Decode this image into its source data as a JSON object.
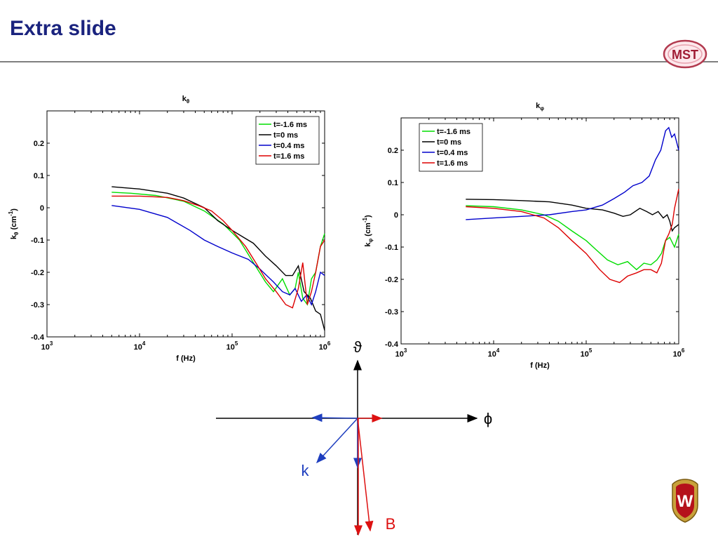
{
  "slide": {
    "title": "Extra slide",
    "logo_text": "MST",
    "crest_letter": "W"
  },
  "colors": {
    "title": "#1a237e",
    "green": "#00dd00",
    "black": "#000000",
    "blue": "#0000cc",
    "red": "#dd0000",
    "axis_vec": "#000000",
    "diagram_k": "#1f3fbf",
    "diagram_B": "#dd1111"
  },
  "chart_data": [
    {
      "type": "line",
      "title": "k_θ",
      "title_main": "k",
      "title_sub": "θ",
      "xlabel": "f (Hz)",
      "ylabel_main": "k",
      "ylabel_sub": "θ",
      "ylabel_unit_pre": " (cm",
      "ylabel_unit_sup": "-1",
      "ylabel_unit_post": ")",
      "xscale": "log",
      "xlim": [
        1000,
        1000000
      ],
      "ylim": [
        -0.4,
        0.3
      ],
      "xticks": [
        {
          "value": 1000,
          "base": "10",
          "exp": "3"
        },
        {
          "value": 10000,
          "base": "10",
          "exp": "4"
        },
        {
          "value": 100000,
          "base": "10",
          "exp": "5"
        },
        {
          "value": 1000000,
          "base": "10",
          "exp": "6"
        }
      ],
      "yticks": [
        {
          "value": 0.2,
          "label": "0.2"
        },
        {
          "value": 0.1,
          "label": "0.1"
        },
        {
          "value": 0,
          "label": "0"
        },
        {
          "value": -0.1,
          "label": "-0.1"
        },
        {
          "value": -0.2,
          "label": "-0.2"
        },
        {
          "value": -0.3,
          "label": "-0.3"
        },
        {
          "value": -0.4,
          "label": "-0.4"
        }
      ],
      "legend_position": "top-right",
      "series": [
        {
          "name": "t=-1.6 ms",
          "color": "#00dd00",
          "x": [
            5000,
            8000,
            15000,
            30000,
            50000,
            80000,
            120000,
            170000,
            230000,
            280000,
            350000,
            420000,
            480000,
            520000,
            580000,
            650000,
            720000,
            800000,
            900000,
            1000000
          ],
          "y": [
            0.048,
            0.045,
            0.038,
            0.02,
            -0.01,
            -0.05,
            -0.1,
            -0.17,
            -0.23,
            -0.26,
            -0.22,
            -0.27,
            -0.25,
            -0.2,
            -0.28,
            -0.3,
            -0.22,
            -0.2,
            -0.12,
            -0.08
          ]
        },
        {
          "name": "t=0 ms",
          "color": "#000000",
          "x": [
            5000,
            10000,
            20000,
            30000,
            50000,
            70000,
            100000,
            130000,
            170000,
            230000,
            300000,
            380000,
            450000,
            520000,
            600000,
            700000,
            800000,
            900000,
            1000000
          ],
          "y": [
            0.065,
            0.058,
            0.045,
            0.03,
            0.0,
            -0.04,
            -0.07,
            -0.09,
            -0.11,
            -0.15,
            -0.18,
            -0.21,
            -0.21,
            -0.18,
            -0.26,
            -0.28,
            -0.32,
            -0.33,
            -0.38
          ]
        },
        {
          "name": "t=0.4 ms",
          "color": "#0000cc",
          "x": [
            5000,
            10000,
            20000,
            35000,
            50000,
            70000,
            100000,
            150000,
            200000,
            280000,
            350000,
            420000,
            480000,
            560000,
            640000,
            720000,
            800000,
            900000,
            1000000
          ],
          "y": [
            0.007,
            -0.005,
            -0.03,
            -0.07,
            -0.1,
            -0.12,
            -0.14,
            -0.16,
            -0.19,
            -0.23,
            -0.26,
            -0.27,
            -0.25,
            -0.29,
            -0.27,
            -0.3,
            -0.26,
            -0.2,
            -0.21
          ]
        },
        {
          "name": "t=1.6 ms",
          "color": "#dd0000",
          "x": [
            5000,
            10000,
            20000,
            30000,
            45000,
            60000,
            80000,
            100000,
            140000,
            180000,
            230000,
            300000,
            380000,
            450000,
            520000,
            580000,
            650000,
            720000,
            800000,
            900000,
            1000000
          ],
          "y": [
            0.036,
            0.036,
            0.032,
            0.022,
            0.005,
            -0.01,
            -0.04,
            -0.07,
            -0.12,
            -0.17,
            -0.22,
            -0.26,
            -0.3,
            -0.31,
            -0.25,
            -0.17,
            -0.3,
            -0.26,
            -0.2,
            -0.12,
            -0.1
          ]
        }
      ]
    },
    {
      "type": "line",
      "title": "k_φ",
      "title_main": "k",
      "title_sub": "φ",
      "xlabel": "f (Hz)",
      "ylabel_main": "k",
      "ylabel_sub": "φ",
      "ylabel_unit_pre": " (cm",
      "ylabel_unit_sup": "-1",
      "ylabel_unit_post": ")",
      "xscale": "log",
      "xlim": [
        1000,
        1000000
      ],
      "ylim": [
        -0.4,
        0.3
      ],
      "xticks": [
        {
          "value": 1000,
          "base": "10",
          "exp": "3"
        },
        {
          "value": 10000,
          "base": "10",
          "exp": "4"
        },
        {
          "value": 100000,
          "base": "10",
          "exp": "5"
        },
        {
          "value": 1000000,
          "base": "10",
          "exp": "6"
        }
      ],
      "yticks": [
        {
          "value": 0.2,
          "label": "0.2"
        },
        {
          "value": 0.1,
          "label": "0.1"
        },
        {
          "value": 0,
          "label": "0"
        },
        {
          "value": -0.1,
          "label": "-0.1"
        },
        {
          "value": -0.2,
          "label": "-0.2"
        },
        {
          "value": -0.3,
          "label": "-0.3"
        },
        {
          "value": -0.4,
          "label": "-0.4"
        }
      ],
      "legend_position": "top-left",
      "series": [
        {
          "name": "t=-1.6 ms",
          "color": "#00dd00",
          "x": [
            5000,
            10000,
            20000,
            35000,
            50000,
            70000,
            100000,
            130000,
            170000,
            220000,
            280000,
            350000,
            420000,
            500000,
            580000,
            650000,
            720000,
            800000,
            900000,
            1000000
          ],
          "y": [
            0.028,
            0.025,
            0.015,
            0.0,
            -0.02,
            -0.05,
            -0.08,
            -0.11,
            -0.14,
            -0.155,
            -0.145,
            -0.17,
            -0.15,
            -0.155,
            -0.14,
            -0.12,
            -0.08,
            -0.07,
            -0.1,
            -0.06
          ]
        },
        {
          "name": "t=0 ms",
          "color": "#000000",
          "x": [
            5000,
            10000,
            20000,
            40000,
            70000,
            100000,
            150000,
            200000,
            250000,
            300000,
            380000,
            450000,
            520000,
            600000,
            680000,
            750000,
            800000,
            850000,
            900000,
            1000000
          ],
          "y": [
            0.048,
            0.047,
            0.044,
            0.04,
            0.03,
            0.02,
            0.015,
            0.005,
            -0.005,
            0.0,
            0.02,
            0.01,
            0.0,
            0.01,
            -0.01,
            0.0,
            -0.02,
            -0.05,
            -0.04,
            -0.03
          ]
        },
        {
          "name": "t=0.4 ms",
          "color": "#0000cc",
          "x": [
            5000,
            10000,
            20000,
            40000,
            70000,
            100000,
            150000,
            200000,
            260000,
            320000,
            400000,
            480000,
            560000,
            640000,
            720000,
            780000,
            840000,
            900000,
            1000000
          ],
          "y": [
            -0.015,
            -0.01,
            -0.005,
            0.0,
            0.01,
            0.015,
            0.03,
            0.05,
            0.07,
            0.09,
            0.1,
            0.12,
            0.17,
            0.2,
            0.26,
            0.27,
            0.24,
            0.25,
            0.2
          ]
        },
        {
          "name": "t=1.6 ms",
          "color": "#dd0000",
          "x": [
            5000,
            10000,
            20000,
            35000,
            50000,
            70000,
            100000,
            140000,
            180000,
            230000,
            280000,
            350000,
            420000,
            500000,
            580000,
            650000,
            720000,
            780000,
            850000,
            900000,
            1000000
          ],
          "y": [
            0.025,
            0.02,
            0.01,
            -0.01,
            -0.04,
            -0.08,
            -0.12,
            -0.17,
            -0.2,
            -0.21,
            -0.19,
            -0.18,
            -0.17,
            -0.17,
            -0.18,
            -0.15,
            -0.08,
            -0.06,
            -0.03,
            0.02,
            0.08
          ]
        }
      ]
    }
  ],
  "diagram": {
    "label_theta": "ϑ",
    "label_phi": "ϕ",
    "label_k": "k",
    "label_B": "B"
  }
}
